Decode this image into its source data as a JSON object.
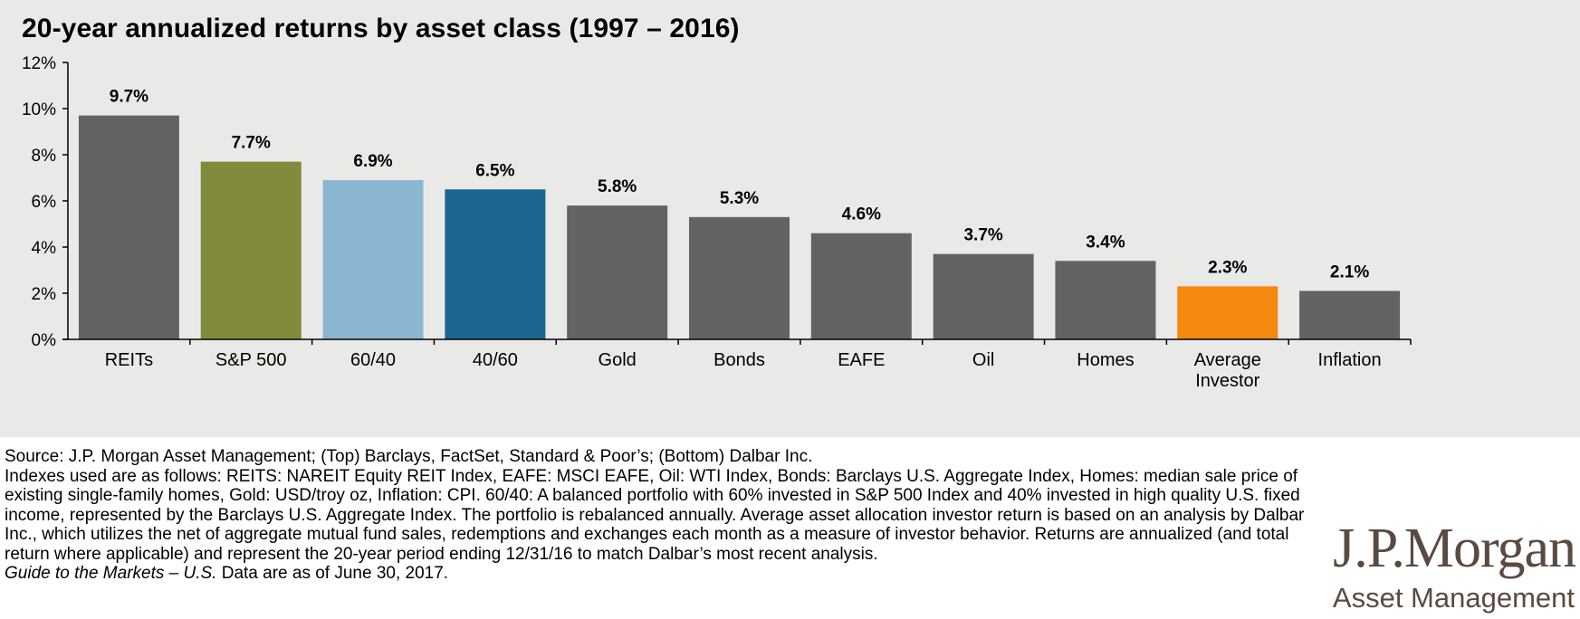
{
  "page": {
    "source_line": "Source: J.P. Morgan Asset Management; (Top) Barclays, FactSet, Standard & Poor’s; (Bottom) Dalbar Inc.",
    "indexes_note": "Indexes used are as follows: REITS: NAREIT Equity REIT Index, EAFE: MSCI EAFE, Oil: WTI Index, Bonds: Barclays U.S. Aggregate Index, Homes: median sale price of existing single-family homes, Gold: USD/troy oz, Inflation: CPI. 60/40: A balanced portfolio with 60% invested in S&P 500 Index and 40% invested in high quality U.S. fixed income, represented by the Barclays U.S. Aggregate Index. The portfolio is rebalanced annually. Average asset allocation investor return is based on an analysis by Dalbar Inc., which utilizes the net of aggregate mutual fund sales, redemptions and exchanges each month as a measure of investor behavior. Returns are annualized (and total return where applicable) and represent the 20-year period ending 12/31/16 to match Dalbar’s most recent analysis.",
    "guide_title": "Guide to the Markets – U.S.",
    "data_as_of": " Data are as of June 30, 2017.",
    "logo": {
      "main": "J.P.Morgan",
      "sub": "Asset Management"
    }
  },
  "chart_data": {
    "type": "bar",
    "title": "20-year annualized returns by asset class (1997 – 2016)",
    "xlabel": "",
    "ylabel": "",
    "categories": [
      "REITs",
      "S&P 500",
      "60/40",
      "40/60",
      "Gold",
      "Bonds",
      "EAFE",
      "Oil",
      "Homes",
      "Average Investor",
      "Inflation"
    ],
    "category_lines": [
      [
        "REITs"
      ],
      [
        "S&P 500"
      ],
      [
        "60/40"
      ],
      [
        "40/60"
      ],
      [
        "Gold"
      ],
      [
        "Bonds"
      ],
      [
        "EAFE"
      ],
      [
        "Oil"
      ],
      [
        "Homes"
      ],
      [
        "Average",
        "Investor"
      ],
      [
        "Inflation"
      ]
    ],
    "values": [
      9.7,
      7.7,
      6.9,
      6.5,
      5.8,
      5.3,
      4.6,
      3.7,
      3.4,
      2.3,
      2.1
    ],
    "value_labels": [
      "9.7%",
      "7.7%",
      "6.9%",
      "6.5%",
      "5.8%",
      "5.3%",
      "4.6%",
      "3.7%",
      "3.4%",
      "2.3%",
      "2.1%"
    ],
    "colors": [
      "#636363",
      "#828a3b",
      "#8bb6d2",
      "#1a6690",
      "#636363",
      "#636363",
      "#636363",
      "#636363",
      "#636363",
      "#f5880f",
      "#636363"
    ],
    "ylim": [
      0,
      12
    ],
    "yticks": [
      0,
      2,
      4,
      6,
      8,
      10,
      12
    ],
    "ytick_labels": [
      "0%",
      "2%",
      "4%",
      "6%",
      "8%",
      "10%",
      "12%"
    ],
    "grid": false,
    "legend": "none"
  }
}
